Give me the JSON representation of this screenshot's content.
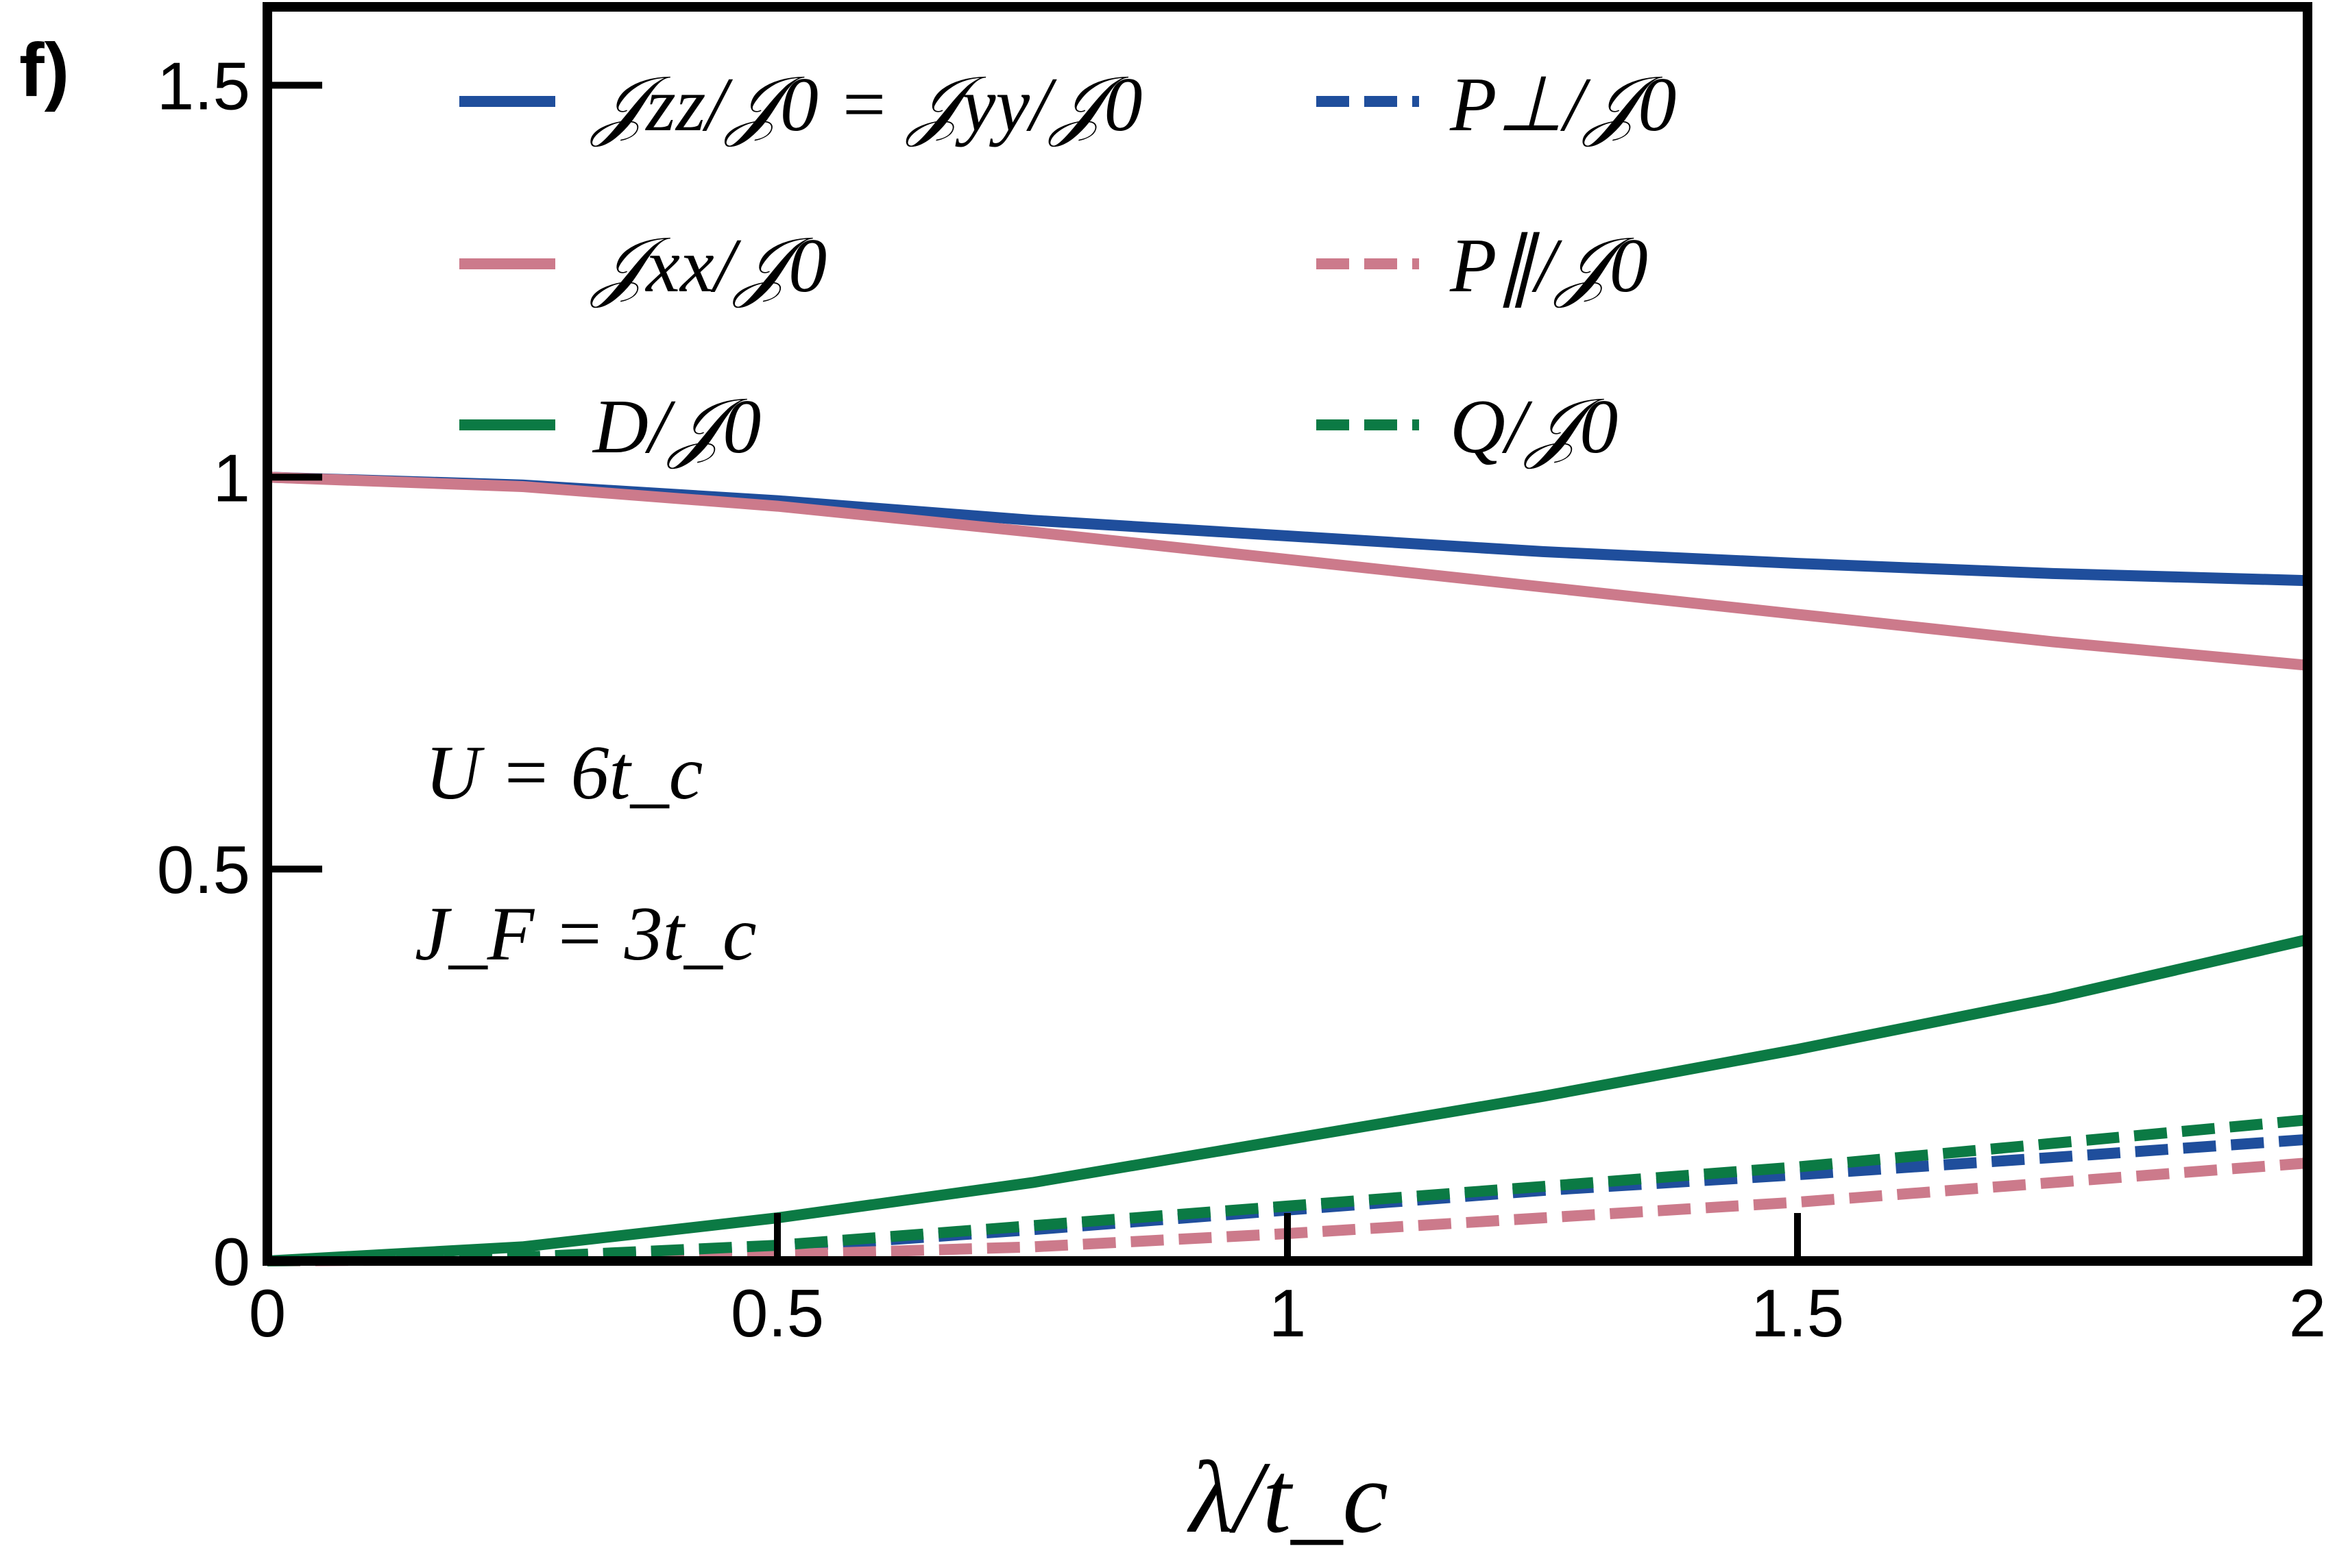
{
  "panel_label": "f)",
  "colors": {
    "blue": "#1f4e9c",
    "pink": "#cc7a8b",
    "green": "#0b7a44",
    "axis": "#000000"
  },
  "chart_data": {
    "type": "line",
    "xlabel": "λ/t_c",
    "xlim": [
      0,
      2
    ],
    "ylim": [
      0,
      1.6
    ],
    "x_ticks": [
      {
        "value": 0,
        "label": "0"
      },
      {
        "value": 0.5,
        "label": "0.5"
      },
      {
        "value": 1,
        "label": "1"
      },
      {
        "value": 1.5,
        "label": "1.5"
      },
      {
        "value": 2,
        "label": "2"
      }
    ],
    "y_ticks": [
      {
        "value": 0,
        "label": "0"
      },
      {
        "value": 0.5,
        "label": "0.5"
      },
      {
        "value": 1,
        "label": "1"
      },
      {
        "value": 1.5,
        "label": "1.5"
      }
    ],
    "grid": false,
    "legend_position": "top",
    "annotations": [
      "U = 6t_c",
      "J_F = 3t_c"
    ],
    "x": [
      0,
      0.25,
      0.5,
      0.75,
      1.0,
      1.25,
      1.5,
      1.75,
      2.0
    ],
    "series": [
      {
        "name": "𝒥zz/𝒥0 = 𝒥yy/𝒥0",
        "color": "blue",
        "style": "solid",
        "values": [
          1.0,
          0.99,
          0.97,
          0.945,
          0.925,
          0.905,
          0.89,
          0.877,
          0.868
        ]
      },
      {
        "name": "𝒥xx/𝒥0",
        "color": "pink",
        "style": "solid",
        "values": [
          1.0,
          0.988,
          0.963,
          0.93,
          0.895,
          0.86,
          0.825,
          0.79,
          0.76
        ]
      },
      {
        "name": "D/𝒥0",
        "color": "green",
        "style": "solid",
        "values": [
          0.0,
          0.018,
          0.055,
          0.1,
          0.155,
          0.21,
          0.27,
          0.335,
          0.41
        ]
      },
      {
        "name": "P⊥/𝒥0",
        "color": "blue",
        "style": "dashed",
        "values": [
          0.0,
          0.004,
          0.017,
          0.04,
          0.065,
          0.09,
          0.11,
          0.132,
          0.155
        ]
      },
      {
        "name": "P∥/𝒥0",
        "color": "pink",
        "style": "dashed",
        "values": [
          0.0,
          0.002,
          0.008,
          0.018,
          0.035,
          0.055,
          0.075,
          0.1,
          0.125
        ]
      },
      {
        "name": "Q/𝒥0",
        "color": "green",
        "style": "dashed",
        "values": [
          0.0,
          0.005,
          0.02,
          0.045,
          0.07,
          0.095,
          0.12,
          0.15,
          0.18
        ]
      }
    ]
  }
}
